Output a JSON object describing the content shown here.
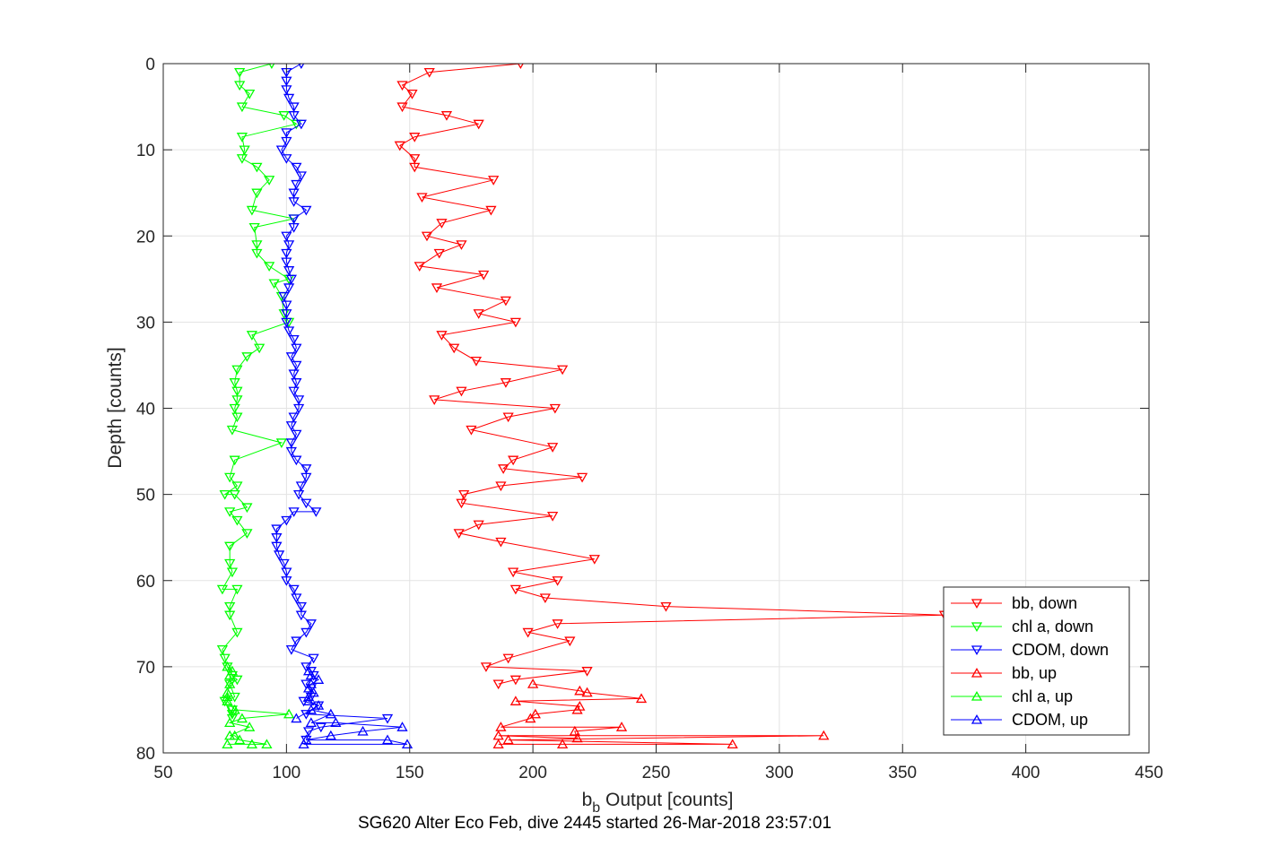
{
  "chart_data": {
    "type": "line",
    "xlabel_base": "b",
    "xlabel_sub": "b",
    "xlabel_rest": " Output [counts]",
    "ylabel": "Depth [counts]",
    "footer": "SG620 Alter Eco Feb, dive 2445 started 26-Mar-2018 23:57:01",
    "xlim": [
      50,
      450
    ],
    "ylim": [
      0,
      80
    ],
    "y_reversed": true,
    "grid": true,
    "legend_position": "bottom-right",
    "xticks": [
      "50",
      "100",
      "150",
      "200",
      "250",
      "300",
      "350",
      "400",
      "450"
    ],
    "yticks": [
      "0",
      "10",
      "20",
      "30",
      "40",
      "50",
      "60",
      "70",
      "80"
    ],
    "series": [
      {
        "name": "bb, down",
        "color": "#ff0000",
        "marker": "triangle-down",
        "points": [
          [
            186,
            72
          ],
          [
            193,
            71.5
          ],
          [
            222,
            70.5
          ],
          [
            181,
            70
          ],
          [
            190,
            69
          ],
          [
            215,
            67
          ],
          [
            198,
            66
          ],
          [
            210,
            65
          ],
          [
            367,
            64
          ],
          [
            254,
            63
          ],
          [
            205,
            62
          ],
          [
            193,
            61
          ],
          [
            210,
            60
          ],
          [
            192,
            59
          ],
          [
            225,
            57.5
          ],
          [
            187,
            55.5
          ],
          [
            170,
            54.5
          ],
          [
            178,
            53.5
          ],
          [
            208,
            52.5
          ],
          [
            171,
            51
          ],
          [
            172,
            50
          ],
          [
            187,
            49
          ],
          [
            220,
            48
          ],
          [
            188,
            47
          ],
          [
            192,
            46
          ],
          [
            208,
            44.5
          ],
          [
            175,
            42.5
          ],
          [
            190,
            41
          ],
          [
            209,
            40
          ],
          [
            160,
            39
          ],
          [
            171,
            38
          ],
          [
            189,
            37
          ],
          [
            212,
            35.5
          ],
          [
            177,
            34.5
          ],
          [
            168,
            33
          ],
          [
            163,
            31.5
          ],
          [
            193,
            30
          ],
          [
            178,
            29
          ],
          [
            189,
            27.5
          ],
          [
            161,
            26
          ],
          [
            180,
            24.5
          ],
          [
            154,
            23.5
          ],
          [
            162,
            22
          ],
          [
            171,
            21
          ],
          [
            157,
            20
          ],
          [
            163,
            18.5
          ],
          [
            183,
            17
          ],
          [
            155,
            15.5
          ],
          [
            184,
            13.5
          ],
          [
            152,
            12
          ],
          [
            152,
            11
          ],
          [
            146,
            9.5
          ],
          [
            152,
            8.5
          ],
          [
            178,
            7
          ],
          [
            165,
            6
          ],
          [
            147,
            5
          ],
          [
            151,
            3.5
          ],
          [
            147,
            2.5
          ],
          [
            158,
            1
          ],
          [
            195,
            0
          ]
        ]
      },
      {
        "name": "chl a, down",
        "color": "#00ff00",
        "marker": "triangle-down",
        "points": [
          [
            78,
            75
          ],
          [
            78,
            75.5
          ],
          [
            78,
            76
          ],
          [
            75,
            74
          ],
          [
            79,
            73.5
          ],
          [
            77,
            72
          ],
          [
            80,
            71.5
          ],
          [
            78,
            71
          ],
          [
            76,
            70
          ],
          [
            75,
            69
          ],
          [
            74,
            68
          ],
          [
            80,
            66
          ],
          [
            77,
            64
          ],
          [
            77,
            63
          ],
          [
            80,
            61
          ],
          [
            74,
            61
          ],
          [
            78,
            59
          ],
          [
            77,
            58
          ],
          [
            77,
            56
          ],
          [
            84,
            54.5
          ],
          [
            80,
            53
          ],
          [
            77,
            52
          ],
          [
            84,
            51.5
          ],
          [
            79,
            50
          ],
          [
            75,
            50
          ],
          [
            80,
            49
          ],
          [
            77,
            48
          ],
          [
            79,
            46
          ],
          [
            98,
            44
          ],
          [
            78,
            42.5
          ],
          [
            80,
            41
          ],
          [
            79,
            40
          ],
          [
            80,
            39
          ],
          [
            80,
            38
          ],
          [
            79,
            37
          ],
          [
            80,
            35.5
          ],
          [
            84,
            34
          ],
          [
            89,
            33
          ],
          [
            86,
            31.5
          ],
          [
            101,
            30
          ],
          [
            99,
            29
          ],
          [
            98,
            27
          ],
          [
            95,
            25.5
          ],
          [
            101,
            25
          ],
          [
            93,
            23.5
          ],
          [
            88,
            22
          ],
          [
            88,
            21
          ],
          [
            87,
            19
          ],
          [
            103,
            18
          ],
          [
            86,
            17
          ],
          [
            88,
            15
          ],
          [
            93,
            13.5
          ],
          [
            88,
            12
          ],
          [
            82,
            11
          ],
          [
            83,
            10
          ],
          [
            82,
            8.5
          ],
          [
            104,
            7
          ],
          [
            99,
            6
          ],
          [
            82,
            5
          ],
          [
            85,
            3.5
          ],
          [
            81,
            2.5
          ],
          [
            81,
            1
          ],
          [
            94,
            0
          ]
        ]
      },
      {
        "name": "CDOM, down",
        "color": "#0000ff",
        "marker": "triangle-down",
        "points": [
          [
            108,
            78.5
          ],
          [
            109,
            77.5
          ],
          [
            114,
            77
          ],
          [
            141,
            76
          ],
          [
            108,
            75.5
          ],
          [
            113,
            74.5
          ],
          [
            107,
            74
          ],
          [
            110,
            73.5
          ],
          [
            110,
            72.5
          ],
          [
            108,
            72
          ],
          [
            111,
            71
          ],
          [
            110,
            70.5
          ],
          [
            108,
            70
          ],
          [
            111,
            69
          ],
          [
            102,
            68
          ],
          [
            104,
            67
          ],
          [
            108,
            66
          ],
          [
            110,
            65
          ],
          [
            106,
            64
          ],
          [
            106,
            63
          ],
          [
            104,
            62
          ],
          [
            103,
            61
          ],
          [
            100,
            60
          ],
          [
            100,
            59
          ],
          [
            99,
            58
          ],
          [
            97,
            57
          ],
          [
            96,
            56
          ],
          [
            96,
            55
          ],
          [
            96,
            54
          ],
          [
            100,
            53
          ],
          [
            103,
            52
          ],
          [
            112,
            52
          ],
          [
            108,
            51
          ],
          [
            105,
            50
          ],
          [
            106,
            49
          ],
          [
            108,
            48
          ],
          [
            108,
            47
          ],
          [
            104,
            46
          ],
          [
            102,
            45
          ],
          [
            102,
            44
          ],
          [
            104,
            43
          ],
          [
            102,
            42
          ],
          [
            103,
            41
          ],
          [
            105,
            40
          ],
          [
            105,
            39
          ],
          [
            103,
            38
          ],
          [
            104,
            37
          ],
          [
            103,
            36
          ],
          [
            104,
            35
          ],
          [
            102,
            34
          ],
          [
            104,
            33
          ],
          [
            103,
            32
          ],
          [
            101,
            31
          ],
          [
            100,
            30
          ],
          [
            100,
            29
          ],
          [
            100,
            28
          ],
          [
            99,
            27
          ],
          [
            101,
            26
          ],
          [
            102,
            25
          ],
          [
            101,
            24
          ],
          [
            100,
            23
          ],
          [
            100,
            22
          ],
          [
            101,
            21
          ],
          [
            100,
            20
          ],
          [
            103,
            19
          ],
          [
            103,
            18
          ],
          [
            108,
            17
          ],
          [
            103,
            16
          ],
          [
            103,
            15
          ],
          [
            104,
            14
          ],
          [
            106,
            13
          ],
          [
            104,
            12
          ],
          [
            100,
            11
          ],
          [
            98,
            10
          ],
          [
            100,
            9
          ],
          [
            100,
            8
          ],
          [
            106,
            7
          ],
          [
            103,
            6
          ],
          [
            103,
            5
          ],
          [
            101,
            4
          ],
          [
            100,
            3
          ],
          [
            100,
            2
          ],
          [
            100,
            1
          ],
          [
            106,
            0
          ]
        ]
      },
      {
        "name": "bb, up",
        "color": "#ff0000",
        "marker": "triangle-up",
        "points": [
          [
            186,
            79
          ],
          [
            212,
            79
          ],
          [
            281,
            79
          ],
          [
            190,
            78.5
          ],
          [
            318,
            78
          ],
          [
            186,
            78
          ],
          [
            218,
            78.3
          ],
          [
            217,
            77.5
          ],
          [
            236,
            77
          ],
          [
            187,
            77
          ],
          [
            199,
            76
          ],
          [
            201,
            75.5
          ],
          [
            218,
            75
          ],
          [
            219,
            74.6
          ],
          [
            193,
            74
          ],
          [
            244,
            73.7
          ],
          [
            222,
            73
          ],
          [
            219,
            72.8
          ],
          [
            200,
            72
          ]
        ]
      },
      {
        "name": "chl a, up",
        "color": "#00ff00",
        "marker": "triangle-up",
        "points": [
          [
            76,
            79
          ],
          [
            86,
            79
          ],
          [
            92,
            79
          ],
          [
            81,
            78.5
          ],
          [
            79,
            78
          ],
          [
            77,
            78
          ],
          [
            85,
            77
          ],
          [
            77,
            76.5
          ],
          [
            82,
            76
          ],
          [
            101,
            75.5
          ],
          [
            79,
            75
          ],
          [
            76,
            74
          ],
          [
            76,
            73.5
          ],
          [
            76,
            73
          ],
          [
            77,
            72
          ],
          [
            77,
            71
          ],
          [
            78,
            70.5
          ],
          [
            76,
            70
          ]
        ]
      },
      {
        "name": "CDOM, up",
        "color": "#0000ff",
        "marker": "triangle-up",
        "points": [
          [
            107,
            79
          ],
          [
            149,
            79
          ],
          [
            141,
            78.5
          ],
          [
            108,
            78.5
          ],
          [
            118,
            78
          ],
          [
            131,
            77.5
          ],
          [
            147,
            77
          ],
          [
            120,
            76.5
          ],
          [
            110,
            76.5
          ],
          [
            118,
            75.5
          ],
          [
            110,
            75
          ],
          [
            104,
            76
          ],
          [
            113,
            74.5
          ],
          [
            109,
            74
          ],
          [
            109,
            73.5
          ],
          [
            111,
            73
          ],
          [
            109,
            72.5
          ],
          [
            110,
            72
          ],
          [
            113,
            71.5
          ],
          [
            110,
            71
          ],
          [
            109,
            70.5
          ]
        ]
      }
    ]
  }
}
